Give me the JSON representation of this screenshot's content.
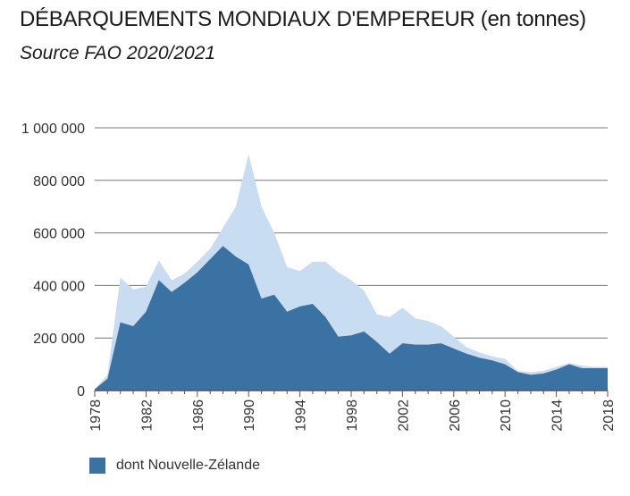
{
  "header": {
    "title": "DÉBARQUEMENTS MONDIAUX D'EMPEREUR (en tonnes)",
    "subtitle": "Source FAO 2020/2021"
  },
  "legend": {
    "label": "dont Nouvelle-Zélande"
  },
  "colors": {
    "world": "#c9ddf2",
    "nz": "#3a72a3",
    "grid": "#777777",
    "text": "#333333"
  },
  "chart_data": {
    "type": "area",
    "title": "DÉBARQUEMENTS MONDIAUX D'EMPEREUR (en tonnes)",
    "subtitle": "Source FAO 2020/2021",
    "xlabel": "",
    "ylabel": "",
    "ylim": [
      0,
      1000000
    ],
    "yticks": [
      0,
      200000,
      400000,
      600000,
      800000,
      1000000
    ],
    "ytick_labels": [
      "0",
      "200 000",
      "400 000",
      "600 000",
      "800 000",
      "1 000 000"
    ],
    "xticks": [
      1978,
      1982,
      1986,
      1990,
      1994,
      1998,
      2002,
      2006,
      2010,
      2014,
      2018
    ],
    "xtick_labels": [
      "1978",
      "1982",
      "1986",
      "1990",
      "1994",
      "1998",
      "2002",
      "2006",
      "2010",
      "2014",
      "2018"
    ],
    "grid": true,
    "legend_position": "bottom-left",
    "x": [
      1978,
      1979,
      1980,
      1981,
      1982,
      1983,
      1984,
      1985,
      1986,
      1987,
      1988,
      1989,
      1990,
      1991,
      1992,
      1993,
      1994,
      1995,
      1996,
      1997,
      1998,
      1999,
      2000,
      2001,
      2002,
      2003,
      2004,
      2005,
      2006,
      2007,
      2008,
      2009,
      2010,
      2011,
      2012,
      2013,
      2014,
      2015,
      2016,
      2017,
      2018
    ],
    "series": [
      {
        "name": "",
        "values": [
          5000,
          60000,
          430000,
          385000,
          395000,
          495000,
          420000,
          445000,
          490000,
          540000,
          620000,
          700000,
          900000,
          700000,
          600000,
          470000,
          455000,
          490000,
          490000,
          450000,
          420000,
          380000,
          290000,
          280000,
          315000,
          275000,
          265000,
          245000,
          205000,
          165000,
          145000,
          130000,
          120000,
          75000,
          70000,
          75000,
          90000,
          105000,
          95000,
          90000,
          90000
        ]
      },
      {
        "name": "dont Nouvelle-Zélande",
        "values": [
          5000,
          45000,
          260000,
          245000,
          300000,
          420000,
          375000,
          410000,
          450000,
          500000,
          550000,
          510000,
          480000,
          350000,
          365000,
          300000,
          320000,
          330000,
          280000,
          205000,
          210000,
          225000,
          185000,
          140000,
          180000,
          175000,
          175000,
          180000,
          160000,
          140000,
          125000,
          115000,
          100000,
          70000,
          60000,
          65000,
          80000,
          100000,
          85000,
          85000,
          85000
        ]
      }
    ]
  }
}
